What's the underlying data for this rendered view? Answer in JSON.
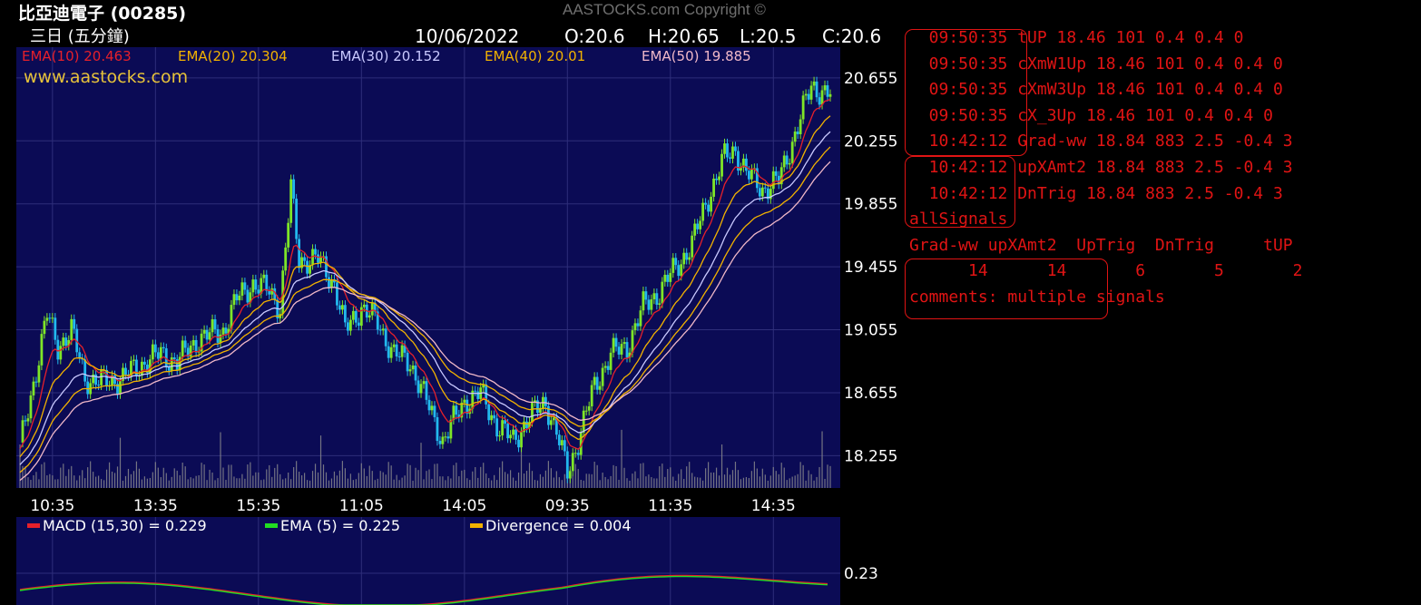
{
  "header": {
    "stock_name": "比亞迪電子 (00285)",
    "period": "三日 (五分鐘)",
    "copyright": "AASTOCKS.com Copyright ©",
    "date": "10/06/2022",
    "ohlc": {
      "open": "O:20.6",
      "high": "H:20.65",
      "low": "L:20.5",
      "close": "C:20.6"
    },
    "watermark": "www.aastocks.com"
  },
  "ema_legend": [
    {
      "label": "EMA(10) 20.463",
      "color": "#e6202a"
    },
    {
      "label": "EMA(20) 20.304",
      "color": "#f2b200"
    },
    {
      "label": "EMA(30) 20.152",
      "color": "#c9c9ff"
    },
    {
      "label": "EMA(40) 20.01",
      "color": "#f2b200"
    },
    {
      "label": "EMA(50) 19.885",
      "color": "#f0b8c8"
    }
  ],
  "macd_legend": [
    {
      "label": "MACD (15,30) = 0.229",
      "color": "#e6202a"
    },
    {
      "label": "EMA (5) = 0.225",
      "color": "#22dd22"
    },
    {
      "label": "Divergence = 0.004",
      "color": "#f2b200"
    }
  ],
  "colors": {
    "background": "#000000",
    "plot_bg": "#0b0b55",
    "grid": "#2e2e7a",
    "candle_up": "#7ee627",
    "candle_down": "#22b8ee",
    "volume": "#8f8f8f",
    "text": "#ffffff",
    "signals": "#e01414"
  },
  "chart_data": {
    "type": "line",
    "title": "比亞迪電子 (00285)",
    "subtitle": "三日 (五分鐘)",
    "ylim": [
      18.05,
      20.85
    ],
    "yticks": [
      20.655,
      20.255,
      19.855,
      19.455,
      19.055,
      18.655,
      18.255
    ],
    "xticks": [
      "10:35",
      "13:35",
      "15:35",
      "11:05",
      "14:05",
      "09:35",
      "11:35",
      "14:35"
    ],
    "x": [
      0,
      1,
      2,
      3,
      4,
      5,
      6,
      7,
      8,
      9,
      10,
      11,
      12,
      13,
      14,
      15,
      16,
      17,
      18,
      19,
      20,
      21,
      22,
      23,
      24,
      25,
      26,
      27,
      28,
      29,
      30,
      31,
      32,
      33,
      34,
      35,
      36,
      37,
      38,
      39,
      40,
      41,
      42,
      43,
      44,
      45,
      46,
      47,
      48,
      49,
      50,
      51,
      52,
      53,
      54,
      55,
      56,
      57,
      58,
      59,
      60,
      61,
      62,
      63,
      64,
      65,
      66,
      67,
      68,
      69,
      70,
      71,
      72,
      73,
      74,
      75,
      76,
      77,
      78,
      79,
      80,
      81,
      82,
      83,
      84,
      85,
      86,
      87,
      88,
      89,
      90,
      91,
      92,
      93,
      94,
      95,
      96,
      97,
      98,
      99,
      100,
      101,
      102,
      103,
      104,
      105,
      106,
      107,
      108,
      109,
      110,
      111,
      112,
      113,
      114,
      115,
      116,
      117,
      118,
      119,
      120,
      121,
      122,
      123,
      124,
      125,
      126,
      127,
      128,
      129,
      130,
      131,
      132,
      133,
      134,
      135,
      136,
      137,
      138,
      139,
      140,
      141,
      142,
      143,
      144,
      145,
      146,
      147,
      148,
      149,
      150,
      151,
      152,
      153,
      154,
      155,
      156,
      157,
      158,
      159,
      160,
      161,
      162,
      163,
      164,
      165,
      166,
      167,
      168,
      169,
      170,
      171,
      172,
      173,
      174,
      175,
      176,
      177,
      178,
      179,
      180,
      181,
      182,
      183,
      184,
      185,
      186,
      187,
      188,
      189,
      190,
      191,
      192,
      193,
      194,
      195,
      196,
      197,
      198,
      199,
      200,
      201,
      202,
      203,
      204,
      205,
      206,
      207,
      208,
      209,
      210,
      211,
      212,
      213,
      214,
      215,
      216,
      217,
      218,
      219,
      220,
      221,
      222,
      223,
      224,
      225,
      226,
      227,
      228,
      229,
      230,
      231,
      232,
      233,
      234,
      235,
      236,
      237,
      238,
      239,
      240,
      241,
      242,
      243,
      244,
      245,
      246,
      247,
      248,
      249,
      250,
      251,
      252,
      253,
      254,
      255,
      256,
      257,
      258,
      259,
      260,
      261,
      262,
      263,
      264,
      265,
      266,
      267,
      268,
      269,
      270,
      271,
      272,
      273,
      274,
      275,
      276,
      277,
      278,
      279,
      280,
      281,
      282,
      283,
      284,
      285,
      286,
      287,
      288,
      289,
      290,
      291,
      292,
      293,
      294,
      295,
      296,
      297,
      298,
      299
    ],
    "price_anchors": [
      [
        0,
        18.3
      ],
      [
        6,
        18.8
      ],
      [
        10,
        19.15
      ],
      [
        14,
        18.95
      ],
      [
        19,
        19.05
      ],
      [
        24,
        18.75
      ],
      [
        30,
        18.72
      ],
      [
        38,
        18.75
      ],
      [
        46,
        18.85
      ],
      [
        52,
        18.9
      ],
      [
        58,
        18.85
      ],
      [
        66,
        19.0
      ],
      [
        75,
        19.05
      ],
      [
        80,
        19.25
      ],
      [
        86,
        19.35
      ],
      [
        92,
        19.3
      ],
      [
        96,
        19.2
      ],
      [
        100,
        19.95
      ],
      [
        103,
        19.5
      ],
      [
        110,
        19.5
      ],
      [
        116,
        19.35
      ],
      [
        120,
        19.05
      ],
      [
        126,
        19.2
      ],
      [
        132,
        19.1
      ],
      [
        138,
        18.9
      ],
      [
        144,
        18.85
      ],
      [
        150,
        18.6
      ],
      [
        156,
        18.35
      ],
      [
        164,
        18.6
      ],
      [
        170,
        18.65
      ],
      [
        176,
        18.45
      ],
      [
        182,
        18.35
      ],
      [
        188,
        18.5
      ],
      [
        194,
        18.6
      ],
      [
        198,
        18.4
      ],
      [
        202,
        18.15
      ],
      [
        206,
        18.35
      ],
      [
        212,
        18.7
      ],
      [
        218,
        18.9
      ],
      [
        224,
        18.95
      ],
      [
        230,
        19.2
      ],
      [
        236,
        19.3
      ],
      [
        242,
        19.45
      ],
      [
        248,
        19.6
      ],
      [
        254,
        19.9
      ],
      [
        260,
        20.15
      ],
      [
        264,
        20.2
      ],
      [
        268,
        20.05
      ],
      [
        274,
        19.95
      ],
      [
        280,
        20.0
      ],
      [
        286,
        20.3
      ],
      [
        292,
        20.6
      ],
      [
        299,
        20.55
      ]
    ],
    "series": [
      {
        "name": "EMA(10)",
        "period": 10,
        "color": "#e6202a"
      },
      {
        "name": "EMA(20)",
        "period": 20,
        "color": "#f2b200"
      },
      {
        "name": "EMA(30)",
        "period": 30,
        "color": "#c9c9ff"
      },
      {
        "name": "EMA(40)",
        "period": 40,
        "color": "#f2b200"
      },
      {
        "name": "EMA(50)",
        "period": 50,
        "color": "#f0b8c8"
      }
    ],
    "macd": {
      "ytick": "0.23",
      "macd_color": "#e6202a",
      "signal_color": "#22dd22"
    }
  },
  "signals": {
    "lines": [
      "  09:50:35 tUP 18.46 101 0.4 0.4 0",
      "  09:50:35 cXmW1Up 18.46 101 0.4 0.4 0",
      "  09:50:35 cXmW3Up 18.46 101 0.4 0.4 0",
      "  09:50:35 cX_3Up 18.46 101 0.4 0.4 0",
      "  10:42:12 Grad-ww 18.84 883 2.5 -0.4 3",
      "  10:42:12 upXAmt2 18.84 883 2.5 -0.4 3",
      "  10:42:12 DnTrig 18.84 883 2.5 -0.4 3",
      "allSignals",
      "Grad-ww upXAmt2  UpTrig  DnTrig     tUP",
      "      14      14       6       5       2",
      "comments: multiple signals"
    ]
  }
}
